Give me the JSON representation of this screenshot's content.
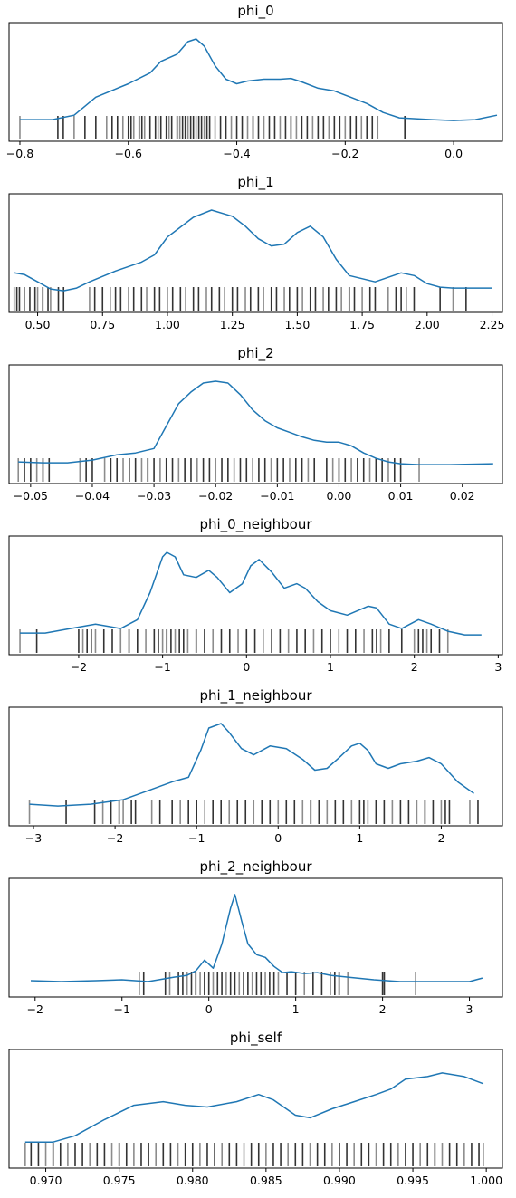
{
  "chart_data": [
    {
      "type": "line",
      "title": "phi_0",
      "xlim": [
        -0.82,
        0.09
      ],
      "xticks": [
        -0.8,
        -0.6,
        -0.4,
        -0.2,
        0.0
      ],
      "xtick_labels": [
        "−0.8",
        "−0.6",
        "−0.4",
        "−0.2",
        "0.0"
      ],
      "ylim": [
        0,
        1
      ],
      "curve": {
        "x": [
          -0.8,
          -0.74,
          -0.7,
          -0.66,
          -0.6,
          -0.56,
          -0.54,
          -0.51,
          -0.49,
          -0.475,
          -0.46,
          -0.44,
          -0.42,
          -0.4,
          -0.38,
          -0.35,
          -0.32,
          -0.3,
          -0.28,
          -0.25,
          -0.22,
          -0.19,
          -0.16,
          -0.13,
          -0.1,
          -0.07,
          -0.04,
          0.0,
          0.04,
          0.08
        ],
        "y": [
          0.1,
          0.1,
          0.15,
          0.35,
          0.5,
          0.62,
          0.75,
          0.83,
          0.97,
          1.0,
          0.92,
          0.7,
          0.55,
          0.5,
          0.53,
          0.55,
          0.55,
          0.56,
          0.52,
          0.45,
          0.42,
          0.35,
          0.28,
          0.18,
          0.12,
          0.11,
          0.1,
          0.09,
          0.1,
          0.15
        ]
      },
      "rug": [
        -0.8,
        -0.73,
        -0.72,
        -0.7,
        -0.68,
        -0.66,
        -0.64,
        -0.63,
        -0.62,
        -0.61,
        -0.6,
        -0.595,
        -0.59,
        -0.58,
        -0.575,
        -0.57,
        -0.56,
        -0.55,
        -0.545,
        -0.54,
        -0.53,
        -0.525,
        -0.52,
        -0.51,
        -0.505,
        -0.5,
        -0.495,
        -0.49,
        -0.485,
        -0.48,
        -0.475,
        -0.47,
        -0.465,
        -0.46,
        -0.455,
        -0.45,
        -0.44,
        -0.43,
        -0.42,
        -0.41,
        -0.4,
        -0.39,
        -0.38,
        -0.37,
        -0.36,
        -0.35,
        -0.34,
        -0.33,
        -0.32,
        -0.31,
        -0.3,
        -0.29,
        -0.28,
        -0.27,
        -0.26,
        -0.25,
        -0.24,
        -0.23,
        -0.22,
        -0.21,
        -0.2,
        -0.19,
        -0.18,
        -0.17,
        -0.16,
        -0.15,
        -0.14,
        -0.09
      ]
    },
    {
      "type": "line",
      "title": "phi_1",
      "xlim": [
        0.39,
        2.29
      ],
      "xticks": [
        0.5,
        0.75,
        1.0,
        1.25,
        1.5,
        1.75,
        2.0,
        2.25
      ],
      "xtick_labels": [
        "0.50",
        "0.75",
        "1.00",
        "1.25",
        "1.50",
        "1.75",
        "2.00",
        "2.25"
      ],
      "ylim": [
        0,
        1
      ],
      "curve": {
        "x": [
          0.41,
          0.45,
          0.5,
          0.55,
          0.6,
          0.65,
          0.7,
          0.8,
          0.9,
          0.95,
          1.0,
          1.1,
          1.17,
          1.25,
          1.3,
          1.35,
          1.4,
          1.45,
          1.5,
          1.55,
          1.6,
          1.65,
          1.7,
          1.8,
          1.9,
          1.95,
          2.0,
          2.05,
          2.1,
          2.25
        ],
        "y": [
          0.3,
          0.28,
          0.2,
          0.12,
          0.1,
          0.13,
          0.2,
          0.32,
          0.42,
          0.5,
          0.7,
          0.92,
          1.0,
          0.93,
          0.82,
          0.68,
          0.6,
          0.62,
          0.75,
          0.82,
          0.7,
          0.45,
          0.27,
          0.2,
          0.3,
          0.27,
          0.18,
          0.14,
          0.13,
          0.13
        ]
      },
      "rug": [
        0.41,
        0.42,
        0.43,
        0.45,
        0.47,
        0.49,
        0.5,
        0.52,
        0.54,
        0.55,
        0.58,
        0.6,
        0.7,
        0.72,
        0.75,
        0.78,
        0.8,
        0.82,
        0.85,
        0.87,
        0.9,
        0.92,
        0.95,
        0.97,
        1.0,
        1.02,
        1.05,
        1.07,
        1.1,
        1.12,
        1.15,
        1.17,
        1.2,
        1.22,
        1.25,
        1.27,
        1.3,
        1.32,
        1.35,
        1.37,
        1.4,
        1.42,
        1.45,
        1.47,
        1.5,
        1.52,
        1.55,
        1.57,
        1.6,
        1.62,
        1.65,
        1.67,
        1.7,
        1.72,
        1.75,
        1.78,
        1.8,
        1.85,
        1.88,
        1.9,
        1.92,
        1.95,
        2.05,
        2.1,
        2.15
      ]
    },
    {
      "type": "line",
      "title": "phi_2",
      "xlim": [
        -0.0535,
        0.0265
      ],
      "xticks": [
        -0.05,
        -0.04,
        -0.03,
        -0.02,
        -0.01,
        0.0,
        0.01,
        0.02
      ],
      "xtick_labels": [
        "−0.05",
        "−0.04",
        "−0.03",
        "−0.02",
        "−0.01",
        "0.00",
        "0.01",
        "0.02"
      ],
      "ylim": [
        0,
        1
      ],
      "curve": {
        "x": [
          -0.052,
          -0.048,
          -0.044,
          -0.04,
          -0.036,
          -0.033,
          -0.03,
          -0.028,
          -0.026,
          -0.024,
          -0.022,
          -0.02,
          -0.018,
          -0.016,
          -0.014,
          -0.012,
          -0.01,
          -0.008,
          -0.006,
          -0.004,
          -0.002,
          0.0,
          0.002,
          0.004,
          0.006,
          0.008,
          0.01,
          0.013,
          0.018,
          0.025
        ],
        "y": [
          0.1,
          0.09,
          0.09,
          0.12,
          0.18,
          0.2,
          0.25,
          0.5,
          0.75,
          0.88,
          0.98,
          1.0,
          0.98,
          0.85,
          0.68,
          0.56,
          0.48,
          0.43,
          0.38,
          0.34,
          0.32,
          0.32,
          0.28,
          0.2,
          0.14,
          0.1,
          0.08,
          0.07,
          0.07,
          0.08
        ]
      },
      "rug": [
        -0.052,
        -0.051,
        -0.05,
        -0.049,
        -0.048,
        -0.047,
        -0.042,
        -0.041,
        -0.04,
        -0.038,
        -0.037,
        -0.036,
        -0.035,
        -0.034,
        -0.033,
        -0.032,
        -0.031,
        -0.03,
        -0.029,
        -0.028,
        -0.027,
        -0.026,
        -0.025,
        -0.024,
        -0.023,
        -0.022,
        -0.021,
        -0.02,
        -0.019,
        -0.018,
        -0.017,
        -0.016,
        -0.015,
        -0.014,
        -0.013,
        -0.012,
        -0.011,
        -0.01,
        -0.009,
        -0.008,
        -0.007,
        -0.006,
        -0.005,
        -0.004,
        -0.002,
        -0.001,
        0.0,
        0.001,
        0.002,
        0.003,
        0.004,
        0.005,
        0.006,
        0.007,
        0.008,
        0.009,
        0.01,
        0.013
      ]
    },
    {
      "type": "line",
      "title": "phi_0_neighbour",
      "xlim": [
        -2.83,
        3.05
      ],
      "xticks": [
        -2,
        -1,
        0,
        1,
        2,
        3
      ],
      "xtick_labels": [
        "−2",
        "−1",
        "0",
        "1",
        "2",
        "3"
      ],
      "ylim": [
        0,
        1
      ],
      "curve": {
        "x": [
          -2.7,
          -2.4,
          -2.1,
          -1.8,
          -1.5,
          -1.3,
          -1.15,
          -1.0,
          -0.95,
          -0.85,
          -0.75,
          -0.6,
          -0.45,
          -0.35,
          -0.2,
          -0.05,
          0.05,
          0.15,
          0.3,
          0.45,
          0.6,
          0.7,
          0.85,
          1.0,
          1.2,
          1.45,
          1.55,
          1.7,
          1.85,
          2.05,
          2.2,
          2.4,
          2.6,
          2.8
        ],
        "y": [
          0.1,
          0.1,
          0.15,
          0.2,
          0.15,
          0.25,
          0.55,
          0.95,
          1.0,
          0.95,
          0.75,
          0.72,
          0.8,
          0.72,
          0.55,
          0.65,
          0.85,
          0.92,
          0.78,
          0.6,
          0.65,
          0.6,
          0.45,
          0.35,
          0.3,
          0.4,
          0.38,
          0.2,
          0.15,
          0.25,
          0.2,
          0.12,
          0.08,
          0.08
        ]
      },
      "rug": [
        -2.7,
        -2.5,
        -2.0,
        -1.95,
        -1.9,
        -1.85,
        -1.8,
        -1.7,
        -1.6,
        -1.5,
        -1.4,
        -1.3,
        -1.2,
        -1.1,
        -1.05,
        -1.0,
        -0.95,
        -0.9,
        -0.85,
        -0.8,
        -0.75,
        -0.7,
        -0.6,
        -0.5,
        -0.4,
        -0.3,
        -0.2,
        -0.1,
        0.0,
        0.1,
        0.2,
        0.3,
        0.4,
        0.5,
        0.6,
        0.7,
        0.8,
        0.9,
        1.0,
        1.1,
        1.2,
        1.3,
        1.4,
        1.5,
        1.55,
        1.6,
        1.7,
        1.85,
        2.0,
        2.05,
        2.1,
        2.15,
        2.2,
        2.3,
        2.4
      ]
    },
    {
      "type": "line",
      "title": "phi_1_neighbour",
      "xlim": [
        -3.3,
        2.75
      ],
      "xticks": [
        -3,
        -2,
        -1,
        0,
        1,
        2
      ],
      "xtick_labels": [
        "−3",
        "−2",
        "−1",
        "0",
        "1",
        "2"
      ],
      "ylim": [
        0,
        1
      ],
      "curve": {
        "x": [
          -3.05,
          -2.7,
          -2.3,
          -1.9,
          -1.6,
          -1.3,
          -1.1,
          -0.95,
          -0.85,
          -0.7,
          -0.6,
          -0.45,
          -0.3,
          -0.1,
          0.1,
          0.3,
          0.45,
          0.6,
          0.75,
          0.9,
          1.0,
          1.1,
          1.2,
          1.35,
          1.5,
          1.7,
          1.85,
          2.0,
          2.2,
          2.4
        ],
        "y": [
          0.1,
          0.08,
          0.1,
          0.15,
          0.25,
          0.35,
          0.4,
          0.7,
          0.95,
          1.0,
          0.9,
          0.72,
          0.65,
          0.75,
          0.72,
          0.6,
          0.48,
          0.5,
          0.62,
          0.75,
          0.78,
          0.7,
          0.55,
          0.5,
          0.55,
          0.58,
          0.62,
          0.55,
          0.35,
          0.22
        ]
      },
      "rug": [
        -3.05,
        -2.6,
        -2.25,
        -2.15,
        -2.05,
        -1.95,
        -1.9,
        -1.8,
        -1.75,
        -1.55,
        -1.45,
        -1.3,
        -1.2,
        -1.1,
        -1.0,
        -0.9,
        -0.8,
        -0.7,
        -0.6,
        -0.5,
        -0.4,
        -0.3,
        -0.2,
        -0.1,
        0.0,
        0.1,
        0.2,
        0.3,
        0.4,
        0.5,
        0.6,
        0.7,
        0.8,
        0.9,
        1.0,
        1.05,
        1.1,
        1.2,
        1.3,
        1.4,
        1.5,
        1.6,
        1.7,
        1.8,
        1.9,
        2.0,
        2.05,
        2.1,
        2.35,
        2.45
      ]
    },
    {
      "type": "line",
      "title": "phi_2_neighbour",
      "xlim": [
        -2.3,
        3.38
      ],
      "xticks": [
        -2,
        -1,
        0,
        1,
        2,
        3
      ],
      "xtick_labels": [
        "−2",
        "−1",
        "0",
        "1",
        "2",
        "3"
      ],
      "ylim": [
        0,
        1
      ],
      "curve": {
        "x": [
          -2.05,
          -1.7,
          -1.3,
          -1.0,
          -0.7,
          -0.4,
          -0.25,
          -0.15,
          -0.05,
          0.05,
          0.15,
          0.25,
          0.3,
          0.38,
          0.45,
          0.55,
          0.65,
          0.75,
          0.85,
          0.95,
          1.1,
          1.25,
          1.4,
          1.6,
          1.9,
          2.2,
          2.6,
          3.0,
          3.15
        ],
        "y": [
          0.04,
          0.03,
          0.04,
          0.05,
          0.03,
          0.08,
          0.1,
          0.15,
          0.27,
          0.18,
          0.45,
          0.85,
          1.0,
          0.7,
          0.45,
          0.33,
          0.3,
          0.2,
          0.13,
          0.14,
          0.12,
          0.13,
          0.1,
          0.08,
          0.05,
          0.03,
          0.03,
          0.03,
          0.07
        ]
      },
      "rug": [
        -0.8,
        -0.75,
        -0.5,
        -0.45,
        -0.35,
        -0.3,
        -0.25,
        -0.2,
        -0.15,
        -0.1,
        -0.05,
        0.0,
        0.05,
        0.1,
        0.15,
        0.2,
        0.25,
        0.3,
        0.35,
        0.4,
        0.45,
        0.5,
        0.55,
        0.6,
        0.65,
        0.7,
        0.75,
        0.8,
        0.9,
        1.0,
        1.1,
        1.2,
        1.3,
        1.4,
        1.45,
        1.5,
        1.6,
        2.0,
        2.02,
        2.38
      ]
    },
    {
      "type": "line",
      "title": "phi_self",
      "xlim": [
        0.9675,
        1.0011
      ],
      "xticks": [
        0.97,
        0.975,
        0.98,
        0.985,
        0.99,
        0.995,
        1.0
      ],
      "xtick_labels": [
        "0.970",
        "0.975",
        "0.980",
        "0.985",
        "0.990",
        "0.995",
        "1.000"
      ],
      "ylim": [
        0,
        1
      ],
      "curve": {
        "x": [
          0.9686,
          0.9705,
          0.972,
          0.974,
          0.976,
          0.978,
          0.9795,
          0.981,
          0.983,
          0.9845,
          0.9855,
          0.987,
          0.988,
          0.9895,
          0.991,
          0.9925,
          0.9935,
          0.9945,
          0.996,
          0.997,
          0.9985,
          0.9998
        ],
        "y": [
          0.15,
          0.15,
          0.22,
          0.4,
          0.56,
          0.6,
          0.56,
          0.54,
          0.6,
          0.68,
          0.62,
          0.45,
          0.42,
          0.52,
          0.6,
          0.68,
          0.74,
          0.85,
          0.88,
          0.92,
          0.88,
          0.8
        ]
      },
      "rug": [
        0.9686,
        0.969,
        0.9695,
        0.97,
        0.9705,
        0.971,
        0.9715,
        0.972,
        0.9725,
        0.973,
        0.9735,
        0.974,
        0.9745,
        0.975,
        0.9755,
        0.976,
        0.9765,
        0.977,
        0.9775,
        0.978,
        0.9785,
        0.979,
        0.9795,
        0.98,
        0.9805,
        0.981,
        0.9815,
        0.982,
        0.9825,
        0.983,
        0.9835,
        0.984,
        0.9845,
        0.985,
        0.9855,
        0.986,
        0.9865,
        0.987,
        0.9875,
        0.988,
        0.9885,
        0.989,
        0.9895,
        0.99,
        0.9905,
        0.991,
        0.9915,
        0.992,
        0.9925,
        0.993,
        0.9935,
        0.994,
        0.9945,
        0.995,
        0.9955,
        0.996,
        0.9965,
        0.997,
        0.9975,
        0.998,
        0.9985,
        0.999,
        0.9995,
        0.9998
      ]
    }
  ]
}
